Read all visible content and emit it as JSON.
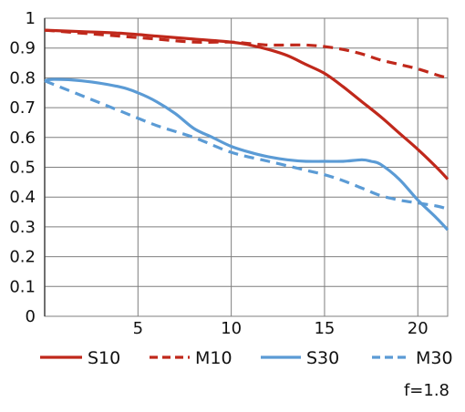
{
  "chart_data": {
    "type": "line",
    "title": "",
    "xlabel": "",
    "ylabel": "",
    "xlim": [
      0,
      21.6
    ],
    "ylim": [
      0,
      1
    ],
    "x_ticks": [
      5,
      10,
      15,
      20
    ],
    "x_tick_labels": [
      "5",
      "10",
      "15",
      "20"
    ],
    "y_ticks": [
      0,
      0.1,
      0.2,
      0.3,
      0.4,
      0.5,
      0.6,
      0.7,
      0.8,
      0.9,
      1
    ],
    "y_tick_labels": [
      "0",
      "0.1",
      "0.2",
      "0.3",
      "0.4",
      "0.5",
      "0.6",
      "0.7",
      "0.8",
      "0.9",
      "1"
    ],
    "grid": true,
    "legend_position": "bottom",
    "annotation": "f=1.8",
    "series": [
      {
        "name": "S10",
        "color": "#c0281b",
        "dash": "solid",
        "x": [
          0,
          2,
          4,
          6,
          8,
          10,
          11,
          12,
          13,
          14,
          15,
          16,
          17,
          18,
          19,
          20,
          21,
          21.6
        ],
        "y": [
          0.96,
          0.955,
          0.95,
          0.94,
          0.93,
          0.92,
          0.91,
          0.895,
          0.875,
          0.845,
          0.815,
          0.77,
          0.72,
          0.67,
          0.615,
          0.56,
          0.5,
          0.46
        ]
      },
      {
        "name": "M10",
        "color": "#c0281b",
        "dash": "dashed",
        "x": [
          0,
          2,
          4,
          6,
          8,
          10,
          11,
          12,
          13,
          14,
          15,
          16,
          17,
          18,
          19,
          20,
          21,
          21.6
        ],
        "y": [
          0.96,
          0.95,
          0.94,
          0.93,
          0.92,
          0.92,
          0.915,
          0.91,
          0.91,
          0.91,
          0.905,
          0.895,
          0.88,
          0.86,
          0.845,
          0.83,
          0.81,
          0.8
        ]
      },
      {
        "name": "S30",
        "color": "#5b9bd5",
        "dash": "solid",
        "x": [
          0,
          0.5,
          2,
          4,
          5,
          6,
          7,
          8,
          9,
          10,
          11,
          12,
          13,
          14,
          15,
          16,
          17,
          17.5,
          18,
          19,
          20,
          21,
          21.6
        ],
        "y": [
          0.79,
          0.795,
          0.79,
          0.77,
          0.75,
          0.72,
          0.68,
          0.63,
          0.6,
          0.57,
          0.55,
          0.535,
          0.525,
          0.52,
          0.52,
          0.52,
          0.525,
          0.52,
          0.51,
          0.46,
          0.39,
          0.33,
          0.29
        ]
      },
      {
        "name": "M30",
        "color": "#5b9bd5",
        "dash": "dashed",
        "x": [
          0,
          2,
          4,
          6,
          8,
          10,
          12,
          14,
          15,
          16,
          17,
          18,
          19,
          20,
          21,
          21.6
        ],
        "y": [
          0.79,
          0.74,
          0.69,
          0.64,
          0.6,
          0.55,
          0.52,
          0.49,
          0.475,
          0.455,
          0.43,
          0.405,
          0.39,
          0.38,
          0.37,
          0.36
        ]
      }
    ]
  }
}
